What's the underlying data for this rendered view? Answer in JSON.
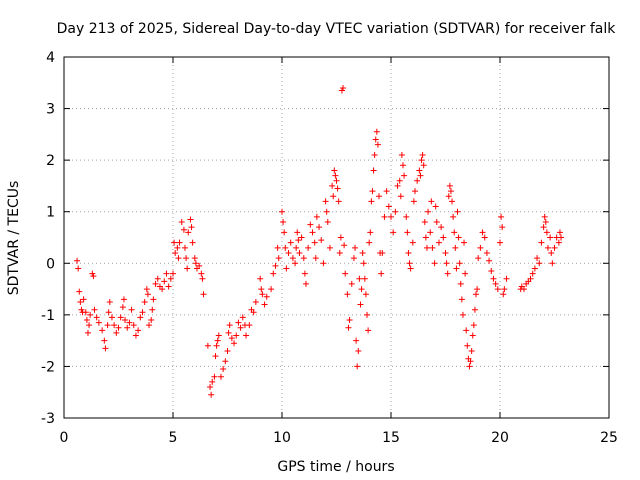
{
  "chart_data": {
    "type": "scatter",
    "title": "Day 213 of 2025, Sidereal Day-to-day VTEC variation (SDTVAR) for receiver falk",
    "xlabel": "GPS time / hours",
    "ylabel": "SDTVAR / TECUs",
    "xlim": [
      0,
      25
    ],
    "ylim": [
      -3,
      4
    ],
    "xticks": [
      0,
      5,
      10,
      15,
      20,
      25
    ],
    "yticks": [
      -3,
      -2,
      -1,
      0,
      1,
      2,
      3,
      4
    ],
    "xtick_labels": [
      "0",
      "5",
      "10",
      "15",
      "20",
      "25"
    ],
    "ytick_labels": [
      "-3",
      "-2",
      "-1",
      "0",
      "1",
      "2",
      "3",
      "4"
    ],
    "grid": true,
    "marker": "plus",
    "color": "#ff0000",
    "series": [
      {
        "name": "SDTVAR",
        "points": [
          [
            0.6,
            0.05
          ],
          [
            0.65,
            -0.1
          ],
          [
            0.7,
            -0.55
          ],
          [
            0.75,
            -0.75
          ],
          [
            0.8,
            -0.9
          ],
          [
            0.85,
            -0.95
          ],
          [
            0.9,
            -0.7
          ],
          [
            1.0,
            -0.95
          ],
          [
            1.05,
            -1.1
          ],
          [
            1.1,
            -1.35
          ],
          [
            1.15,
            -1.2
          ],
          [
            1.2,
            -1.0
          ],
          [
            1.3,
            -0.2
          ],
          [
            1.35,
            -0.25
          ],
          [
            1.4,
            -0.9
          ],
          [
            1.5,
            -1.05
          ],
          [
            1.6,
            -1.15
          ],
          [
            1.75,
            -1.3
          ],
          [
            1.85,
            -1.5
          ],
          [
            1.9,
            -1.65
          ],
          [
            2.0,
            -1.2
          ],
          [
            2.05,
            -0.95
          ],
          [
            2.1,
            -0.75
          ],
          [
            2.2,
            -1.05
          ],
          [
            2.3,
            -1.2
          ],
          [
            2.4,
            -1.35
          ],
          [
            2.5,
            -1.25
          ],
          [
            2.6,
            -1.05
          ],
          [
            2.7,
            -0.85
          ],
          [
            2.75,
            -0.7
          ],
          [
            2.8,
            -1.1
          ],
          [
            2.9,
            -1.25
          ],
          [
            3.0,
            -1.15
          ],
          [
            3.1,
            -0.9
          ],
          [
            3.2,
            -1.2
          ],
          [
            3.3,
            -1.4
          ],
          [
            3.4,
            -1.3
          ],
          [
            3.5,
            -1.05
          ],
          [
            3.6,
            -0.95
          ],
          [
            3.7,
            -0.75
          ],
          [
            3.8,
            -0.5
          ],
          [
            3.85,
            -0.6
          ],
          [
            3.9,
            -1.2
          ],
          [
            4.0,
            -1.1
          ],
          [
            4.05,
            -0.9
          ],
          [
            4.1,
            -0.7
          ],
          [
            4.2,
            -0.4
          ],
          [
            4.3,
            -0.3
          ],
          [
            4.4,
            -0.45
          ],
          [
            4.5,
            -0.5
          ],
          [
            4.6,
            -0.35
          ],
          [
            4.7,
            -0.2
          ],
          [
            4.8,
            -0.45
          ],
          [
            4.9,
            -0.3
          ],
          [
            5.0,
            -0.2
          ],
          [
            5.05,
            0.4
          ],
          [
            5.1,
            0.2
          ],
          [
            5.2,
            0.3
          ],
          [
            5.25,
            0.1
          ],
          [
            5.3,
            0.4
          ],
          [
            5.4,
            0.8
          ],
          [
            5.5,
            0.65
          ],
          [
            5.55,
            0.3
          ],
          [
            5.6,
            0.1
          ],
          [
            5.65,
            -0.1
          ],
          [
            5.7,
            0.6
          ],
          [
            5.8,
            0.85
          ],
          [
            5.85,
            0.7
          ],
          [
            5.9,
            0.4
          ],
          [
            6.0,
            0.1
          ],
          [
            6.05,
            0.0
          ],
          [
            6.1,
            -0.1
          ],
          [
            6.2,
            -0.05
          ],
          [
            6.3,
            -0.2
          ],
          [
            6.35,
            -0.3
          ],
          [
            6.4,
            -0.6
          ],
          [
            6.6,
            -1.6
          ],
          [
            6.7,
            -2.4
          ],
          [
            6.75,
            -2.55
          ],
          [
            6.8,
            -2.3
          ],
          [
            6.9,
            -2.2
          ],
          [
            6.95,
            -1.8
          ],
          [
            7.0,
            -1.6
          ],
          [
            7.05,
            -1.5
          ],
          [
            7.1,
            -1.4
          ],
          [
            7.2,
            -2.2
          ],
          [
            7.3,
            -2.05
          ],
          [
            7.4,
            -1.9
          ],
          [
            7.5,
            -1.7
          ],
          [
            7.55,
            -1.35
          ],
          [
            7.6,
            -1.2
          ],
          [
            7.7,
            -1.45
          ],
          [
            7.8,
            -1.55
          ],
          [
            7.9,
            -1.4
          ],
          [
            8.0,
            -1.15
          ],
          [
            8.1,
            -1.25
          ],
          [
            8.2,
            -1.05
          ],
          [
            8.3,
            -1.2
          ],
          [
            8.35,
            -1.4
          ],
          [
            8.5,
            -1.2
          ],
          [
            8.6,
            -0.9
          ],
          [
            8.7,
            -0.95
          ],
          [
            8.8,
            -0.75
          ],
          [
            9.0,
            -0.3
          ],
          [
            9.05,
            -0.5
          ],
          [
            9.1,
            -0.6
          ],
          [
            9.2,
            -0.8
          ],
          [
            9.3,
            -0.65
          ],
          [
            9.5,
            -0.5
          ],
          [
            9.6,
            -0.2
          ],
          [
            9.7,
            -0.05
          ],
          [
            9.8,
            0.3
          ],
          [
            9.85,
            0.1
          ],
          [
            10.0,
            1.0
          ],
          [
            10.05,
            0.8
          ],
          [
            10.1,
            0.6
          ],
          [
            10.15,
            0.3
          ],
          [
            10.2,
            -0.1
          ],
          [
            10.3,
            0.2
          ],
          [
            10.4,
            0.4
          ],
          [
            10.5,
            0.1
          ],
          [
            10.6,
            0.0
          ],
          [
            10.65,
            0.3
          ],
          [
            10.7,
            0.6
          ],
          [
            10.75,
            0.45
          ],
          [
            10.8,
            0.2
          ],
          [
            10.9,
            0.5
          ],
          [
            11.0,
            0.1
          ],
          [
            11.05,
            -0.2
          ],
          [
            11.1,
            -0.4
          ],
          [
            11.2,
            0.3
          ],
          [
            11.3,
            0.75
          ],
          [
            11.4,
            0.6
          ],
          [
            11.5,
            0.4
          ],
          [
            11.55,
            0.1
          ],
          [
            11.6,
            0.9
          ],
          [
            11.7,
            0.7
          ],
          [
            11.8,
            0.45
          ],
          [
            11.9,
            0.0
          ],
          [
            12.0,
            1.2
          ],
          [
            12.05,
            1.0
          ],
          [
            12.1,
            0.8
          ],
          [
            12.2,
            0.3
          ],
          [
            12.3,
            1.5
          ],
          [
            12.35,
            1.3
          ],
          [
            12.4,
            1.8
          ],
          [
            12.45,
            1.7
          ],
          [
            12.5,
            1.6
          ],
          [
            12.55,
            1.45
          ],
          [
            12.6,
            1.2
          ],
          [
            12.65,
            0.2
          ],
          [
            12.7,
            0.5
          ],
          [
            12.75,
            3.35
          ],
          [
            12.8,
            3.4
          ],
          [
            12.85,
            0.35
          ],
          [
            12.9,
            -0.2
          ],
          [
            13.0,
            -0.6
          ],
          [
            13.05,
            -1.25
          ],
          [
            13.1,
            -1.1
          ],
          [
            13.2,
            -0.4
          ],
          [
            13.3,
            0.1
          ],
          [
            13.35,
            0.3
          ],
          [
            13.4,
            -1.5
          ],
          [
            13.45,
            -2.0
          ],
          [
            13.5,
            -1.7
          ],
          [
            13.55,
            -0.3
          ],
          [
            13.6,
            -0.8
          ],
          [
            13.65,
            -0.5
          ],
          [
            13.7,
            0.2
          ],
          [
            13.75,
            0.0
          ],
          [
            13.8,
            -0.3
          ],
          [
            13.85,
            -0.6
          ],
          [
            13.9,
            -1.0
          ],
          [
            13.95,
            -1.3
          ],
          [
            14.0,
            0.4
          ],
          [
            14.05,
            0.6
          ],
          [
            14.1,
            1.2
          ],
          [
            14.15,
            1.4
          ],
          [
            14.2,
            1.8
          ],
          [
            14.25,
            2.1
          ],
          [
            14.3,
            2.4
          ],
          [
            14.35,
            2.55
          ],
          [
            14.4,
            2.3
          ],
          [
            14.45,
            1.3
          ],
          [
            14.5,
            0.2
          ],
          [
            14.55,
            -0.2
          ],
          [
            14.6,
            0.2
          ],
          [
            14.7,
            0.9
          ],
          [
            14.8,
            1.4
          ],
          [
            14.9,
            1.1
          ],
          [
            15.0,
            0.9
          ],
          [
            15.1,
            0.6
          ],
          [
            15.2,
            1.0
          ],
          [
            15.3,
            1.5
          ],
          [
            15.4,
            1.6
          ],
          [
            15.45,
            1.3
          ],
          [
            15.5,
            2.1
          ],
          [
            15.55,
            1.9
          ],
          [
            15.6,
            1.7
          ],
          [
            15.7,
            0.9
          ],
          [
            15.75,
            0.6
          ],
          [
            15.8,
            0.2
          ],
          [
            15.85,
            0.0
          ],
          [
            15.9,
            -0.1
          ],
          [
            16.0,
            0.4
          ],
          [
            16.05,
            1.2
          ],
          [
            16.1,
            1.4
          ],
          [
            16.2,
            1.6
          ],
          [
            16.3,
            1.8
          ],
          [
            16.35,
            1.7
          ],
          [
            16.4,
            2.0
          ],
          [
            16.45,
            2.1
          ],
          [
            16.5,
            1.9
          ],
          [
            16.55,
            0.8
          ],
          [
            16.6,
            0.5
          ],
          [
            16.65,
            0.3
          ],
          [
            16.7,
            1.0
          ],
          [
            16.8,
            0.6
          ],
          [
            16.85,
            1.2
          ],
          [
            16.9,
            0.3
          ],
          [
            17.0,
            0.0
          ],
          [
            17.05,
            1.1
          ],
          [
            17.1,
            0.8
          ],
          [
            17.2,
            0.4
          ],
          [
            17.3,
            0.7
          ],
          [
            17.4,
            0.5
          ],
          [
            17.5,
            0.2
          ],
          [
            17.55,
            0.0
          ],
          [
            17.6,
            -0.2
          ],
          [
            17.65,
            1.3
          ],
          [
            17.7,
            1.5
          ],
          [
            17.75,
            1.4
          ],
          [
            17.8,
            1.2
          ],
          [
            17.85,
            0.9
          ],
          [
            17.9,
            0.6
          ],
          [
            17.95,
            0.3
          ],
          [
            18.0,
            -0.1
          ],
          [
            18.05,
            1.0
          ],
          [
            18.1,
            0.5
          ],
          [
            18.15,
            0.0
          ],
          [
            18.2,
            -0.4
          ],
          [
            18.25,
            -0.7
          ],
          [
            18.3,
            -1.0
          ],
          [
            18.35,
            0.4
          ],
          [
            18.4,
            -0.2
          ],
          [
            18.45,
            -1.3
          ],
          [
            18.5,
            -1.6
          ],
          [
            18.55,
            -1.85
          ],
          [
            18.6,
            -2.0
          ],
          [
            18.65,
            -1.9
          ],
          [
            18.7,
            -1.7
          ],
          [
            18.75,
            -1.4
          ],
          [
            18.8,
            -1.2
          ],
          [
            18.85,
            -0.9
          ],
          [
            18.9,
            -0.6
          ],
          [
            18.95,
            -0.5
          ],
          [
            19.0,
            0.1
          ],
          [
            19.1,
            0.3
          ],
          [
            19.2,
            0.6
          ],
          [
            19.3,
            0.5
          ],
          [
            19.4,
            0.2
          ],
          [
            19.5,
            0.05
          ],
          [
            19.6,
            -0.15
          ],
          [
            19.7,
            -0.3
          ],
          [
            19.8,
            -0.4
          ],
          [
            19.9,
            -0.5
          ],
          [
            20.0,
            0.4
          ],
          [
            20.05,
            0.9
          ],
          [
            20.1,
            0.7
          ],
          [
            20.15,
            -0.6
          ],
          [
            20.2,
            -0.5
          ],
          [
            20.3,
            -0.3
          ],
          [
            20.95,
            -0.5
          ],
          [
            21.0,
            -0.45
          ],
          [
            21.1,
            -0.5
          ],
          [
            21.2,
            -0.4
          ],
          [
            21.3,
            -0.35
          ],
          [
            21.4,
            -0.3
          ],
          [
            21.5,
            -0.2
          ],
          [
            21.6,
            -0.1
          ],
          [
            21.7,
            0.1
          ],
          [
            21.8,
            0.0
          ],
          [
            21.9,
            0.4
          ],
          [
            22.0,
            0.7
          ],
          [
            22.05,
            0.9
          ],
          [
            22.1,
            0.8
          ],
          [
            22.15,
            0.6
          ],
          [
            22.2,
            0.3
          ],
          [
            22.3,
            0.5
          ],
          [
            22.35,
            0.2
          ],
          [
            22.4,
            0.0
          ],
          [
            22.5,
            0.3
          ],
          [
            22.6,
            0.5
          ],
          [
            22.7,
            0.4
          ],
          [
            22.75,
            0.6
          ],
          [
            22.8,
            0.5
          ]
        ]
      }
    ]
  }
}
